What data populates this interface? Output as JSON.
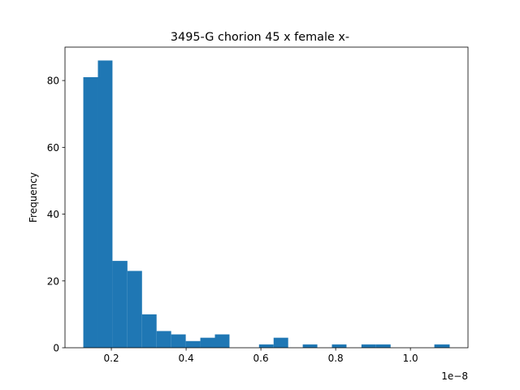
{
  "chart_data": {
    "type": "bar",
    "title": "3495-G chorion 45 x female x-",
    "xlabel": "",
    "ylabel": "Frequency",
    "x_offset_label": "1e−8",
    "xlim": [
      0.076,
      1.154
    ],
    "ylim": [
      0,
      90
    ],
    "grid": false,
    "legend": "none",
    "bar_color": "#1f77b4",
    "x_ticks": [
      {
        "value": 0.2,
        "label": "0.2"
      },
      {
        "value": 0.4,
        "label": "0.4"
      },
      {
        "value": 0.6,
        "label": "0.6"
      },
      {
        "value": 0.8,
        "label": "0.8"
      },
      {
        "value": 1.0,
        "label": "1.0"
      }
    ],
    "y_ticks": [
      {
        "value": 0,
        "label": "0"
      },
      {
        "value": 20,
        "label": "20"
      },
      {
        "value": 40,
        "label": "40"
      },
      {
        "value": 60,
        "label": "60"
      },
      {
        "value": 80,
        "label": "80"
      }
    ],
    "bin_edges": [
      0.125,
      0.164,
      0.203,
      0.243,
      0.282,
      0.321,
      0.36,
      0.399,
      0.438,
      0.477,
      0.516,
      0.556,
      0.595,
      0.634,
      0.673,
      0.712,
      0.751,
      0.79,
      0.829,
      0.869,
      0.908,
      0.947,
      0.986,
      1.025,
      1.064,
      1.105
    ],
    "values": [
      81,
      86,
      26,
      23,
      10,
      5,
      4,
      2,
      3,
      4,
      0,
      0,
      1,
      3,
      0,
      1,
      0,
      1,
      0,
      1,
      1,
      0,
      0,
      0,
      1
    ]
  }
}
